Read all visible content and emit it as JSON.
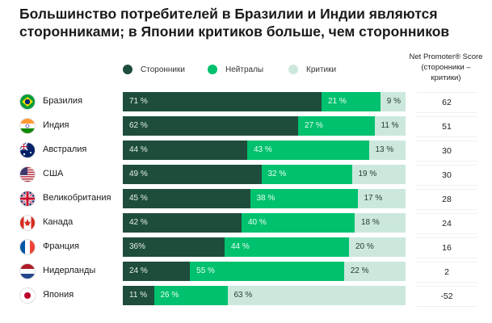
{
  "title": "Большинство потребителей в Бразилии и Индии являются сторонниками; в Японии критиков больше, чем сторонников",
  "colors": {
    "promoters": "#1f4d3c",
    "neutrals": "#00c16e",
    "critics": "#cce8dc"
  },
  "chart_data": {
    "type": "bar",
    "stacked": true,
    "orientation": "horizontal",
    "legend": [
      "Сторонники",
      "Нейтралы",
      "Критики"
    ],
    "legend_position": "top",
    "nps_header": "Net Promoter® Score (сторонники – критики)",
    "categories": [
      "Бразилия",
      "Индия",
      "Австралия",
      "США",
      "Великобритания",
      "Канада",
      "Франция",
      "Нидерланды",
      "Япония"
    ],
    "flags": [
      "brazil-flag",
      "india-flag",
      "australia-flag",
      "usa-flag",
      "uk-flag",
      "canada-flag",
      "france-flag",
      "netherlands-flag",
      "japan-flag"
    ],
    "series": [
      {
        "name": "Сторонники",
        "values": [
          71,
          62,
          44,
          49,
          45,
          42,
          36,
          24,
          11
        ],
        "labels": [
          "71 %",
          "62 %",
          "44 %",
          "49 %",
          "45 %",
          "42 %",
          "36%",
          "24 %",
          "11 %"
        ]
      },
      {
        "name": "Нейтралы",
        "values": [
          21,
          27,
          43,
          32,
          38,
          40,
          44,
          55,
          26
        ],
        "labels": [
          "21 %",
          "27 %",
          "43 %",
          "32 %",
          "38 %",
          "40 %",
          "44 %",
          "55 %",
          "26 %"
        ]
      },
      {
        "name": "Критики",
        "values": [
          9,
          11,
          13,
          19,
          17,
          18,
          20,
          22,
          63
        ],
        "labels": [
          "9 %",
          "11 %",
          "13 %",
          "19 %",
          "17 %",
          "18 %",
          "20 %",
          "22 %",
          "63 %"
        ]
      }
    ],
    "nps": [
      "62",
      "51",
      "30",
      "30",
      "28",
      "24",
      "16",
      "2",
      "-52"
    ]
  }
}
